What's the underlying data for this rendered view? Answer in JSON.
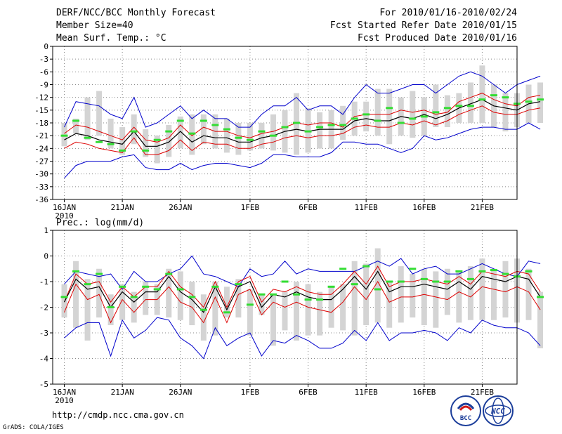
{
  "header": {
    "title": "DERF/NCC/BCC Monthly Forecast",
    "member_size": "Member Size=40",
    "period": "For 2010/01/16-2010/02/24",
    "fcst_started": "Fcst Started Refer Date 2010/01/15",
    "fcst_produced": "Fcst Produced Date 2010/01/16"
  },
  "footer": {
    "url": "http://cmdp.ncc.cma.gov.cn",
    "credit": "GrADS: COLA/IGES",
    "logo_bcc": "BCC",
    "logo_ncc": "NCC"
  },
  "colors": {
    "ensemble_max_min": "#0000cc",
    "spread_band": "#dd0000",
    "mean": "#000000",
    "box": "#d4d4d4",
    "marker": "#33dd33",
    "grid": "#888888"
  },
  "chart_data": [
    {
      "type": "line",
      "title": "Mean Surf. Temp.: °C",
      "x_tick_labels": [
        "16JAN",
        "21JAN",
        "26JAN",
        "1FEB",
        "6FEB",
        "11FEB",
        "16FEB",
        "21FEB"
      ],
      "x_tick_days": [
        0,
        5,
        10,
        16,
        21,
        26,
        31,
        36
      ],
      "x_year_label": "2010",
      "xlim": [
        -1,
        39
      ],
      "ylim": [
        -36,
        0
      ],
      "y_ticks": [
        0,
        -3,
        -6,
        -9,
        -12,
        -15,
        -18,
        -21,
        -24,
        -27,
        -30,
        -33,
        -36
      ],
      "series": [
        {
          "name": "max",
          "values": [
            -19,
            -13,
            -13.5,
            -14,
            -16,
            -17,
            -12,
            -19,
            -18,
            -16,
            -14,
            -17,
            -15,
            -17,
            -17,
            -19,
            -19,
            -16,
            -14,
            -14,
            -12,
            -15,
            -14,
            -14,
            -16,
            -12,
            -9,
            -11,
            -11,
            -10,
            -9,
            -9,
            -11,
            -9,
            -7,
            -6,
            -7,
            -9,
            -11,
            -9,
            -8,
            -7
          ]
        },
        {
          "name": "upper",
          "values": [
            -20.5,
            -18.5,
            -19,
            -20,
            -21,
            -22,
            -19,
            -22,
            -22.5,
            -21.5,
            -18.5,
            -21,
            -19,
            -20,
            -20,
            -21,
            -21.5,
            -20.5,
            -20,
            -19,
            -18,
            -18.5,
            -18,
            -18,
            -19,
            -16.5,
            -16,
            -16,
            -16,
            -15,
            -15.5,
            -15,
            -16,
            -15.5,
            -13,
            -12,
            -11,
            -12.5,
            -13.5,
            -14,
            -12,
            -11.5
          ]
        },
        {
          "name": "mean",
          "values": [
            -22,
            -20.5,
            -21,
            -22,
            -22.5,
            -23,
            -20,
            -23.5,
            -23.5,
            -22.5,
            -20,
            -22.5,
            -21,
            -21.5,
            -21.5,
            -22.5,
            -22.5,
            -21.5,
            -21,
            -20,
            -19.5,
            -20,
            -19.5,
            -19.5,
            -19.5,
            -17.5,
            -17,
            -17.5,
            -17.5,
            -16.5,
            -17,
            -16,
            -17,
            -16,
            -14.5,
            -13.5,
            -12.5,
            -14,
            -14.5,
            -15,
            -13.5,
            -13
          ]
        },
        {
          "name": "lower",
          "values": [
            -24,
            -22.5,
            -23,
            -24,
            -24.5,
            -25,
            -21.5,
            -25.5,
            -25.5,
            -24.5,
            -22,
            -24.5,
            -22.5,
            -23,
            -23,
            -24,
            -24,
            -23,
            -22.5,
            -21.5,
            -21,
            -21.5,
            -21,
            -21,
            -20.5,
            -19,
            -18.5,
            -19,
            -19,
            -18,
            -18.5,
            -17.5,
            -18.5,
            -17.5,
            -16,
            -15,
            -14,
            -15.5,
            -16,
            -16,
            -15,
            -14.5
          ]
        },
        {
          "name": "min",
          "values": [
            -31,
            -28,
            -27,
            -27,
            -27,
            -26,
            -25.5,
            -28.5,
            -29,
            -29,
            -27.5,
            -29,
            -28,
            -27.5,
            -27.5,
            -28,
            -28.5,
            -27.5,
            -25.5,
            -25.5,
            -26,
            -26,
            -26,
            -25,
            -22.5,
            -22.5,
            -23,
            -23,
            -24,
            -25,
            -24,
            -21,
            -22,
            -21.5,
            -20.5,
            -19.5,
            -19,
            -19,
            -19.5,
            -19.5,
            -18,
            -19.5
          ]
        }
      ],
      "boxes": [
        [
          -23.5,
          -18
        ],
        [
          -20.5,
          -17
        ],
        [
          -22,
          -12
        ],
        [
          -21,
          -10.5
        ],
        [
          -24,
          -17
        ],
        [
          -25.5,
          -19
        ],
        [
          -23,
          -16
        ],
        [
          -26,
          -19.5
        ],
        [
          -27.5,
          -21
        ],
        [
          -26,
          -18.5
        ],
        [
          -24,
          -16.5
        ],
        [
          -25.5,
          -16
        ],
        [
          -23,
          -16
        ],
        [
          -24,
          -16
        ],
        [
          -25,
          -17
        ],
        [
          -25.5,
          -18
        ],
        [
          -24.5,
          -18
        ],
        [
          -24,
          -18
        ],
        [
          -24.5,
          -16
        ],
        [
          -25,
          -15
        ],
        [
          -25.5,
          -11
        ],
        [
          -25,
          -14.5
        ],
        [
          -24,
          -15.5
        ],
        [
          -24,
          -15
        ],
        [
          -22,
          -14
        ],
        [
          -21,
          -13
        ],
        [
          -20,
          -13
        ],
        [
          -21,
          -10
        ],
        [
          -23,
          -10
        ],
        [
          -21,
          -12
        ],
        [
          -21.5,
          -10.5
        ],
        [
          -21,
          -12
        ],
        [
          -19,
          -9
        ],
        [
          -19,
          -11.5
        ],
        [
          -18,
          -11
        ],
        [
          -18,
          -8.5
        ],
        [
          -18,
          -4.5
        ],
        [
          -19,
          -9
        ],
        [
          -20,
          -11
        ],
        [
          -19,
          -11
        ],
        [
          -18,
          -9
        ],
        [
          -18,
          -8.5
        ]
      ],
      "markers": [
        -21,
        -17.5,
        -21.5,
        -22.5,
        -23,
        -24.5,
        -20,
        -24.5,
        -22,
        -20,
        -17.5,
        -20.5,
        -17.5,
        -18.5,
        -19.5,
        -21.5,
        -22,
        -20,
        -21,
        -19,
        -18,
        -20,
        -19,
        -18.5,
        -18.5,
        -17,
        -16,
        -17.5,
        -14.5,
        -18,
        -17,
        -16.5,
        -15.5,
        -14.5,
        -14,
        -14,
        -12.5,
        -11.5,
        -12,
        -13.5,
        -13,
        -12.5
      ]
    },
    {
      "type": "line",
      "title": "Prec.: log(mm/d)",
      "x_tick_labels": [
        "16JAN",
        "21JAN",
        "26JAN",
        "1FEB",
        "6FEB",
        "11FEB",
        "16FEB",
        "21FEB"
      ],
      "x_tick_days": [
        0,
        5,
        10,
        16,
        21,
        26,
        31,
        36
      ],
      "x_year_label": "2010",
      "xlim": [
        -1,
        39
      ],
      "ylim": [
        -5,
        1
      ],
      "y_ticks": [
        1,
        0,
        -1,
        -2,
        -3,
        -4,
        -5
      ],
      "series": [
        {
          "name": "max",
          "values": [
            -1.1,
            -0.6,
            -0.7,
            -0.8,
            -0.7,
            -1.3,
            -0.6,
            -1.0,
            -1.0,
            -0.7,
            -0.5,
            0.0,
            -0.7,
            -0.8,
            -1.0,
            -1.2,
            -0.5,
            -0.8,
            -0.7,
            -0.2,
            -0.7,
            -0.5,
            -0.6,
            -0.6,
            -0.6,
            -0.6,
            -0.4,
            -0.2,
            -0.4,
            -0.1,
            -0.7,
            -0.5,
            -0.4,
            -0.7,
            -0.7,
            -0.5,
            -0.3,
            -0.5,
            -0.7,
            -0.8,
            -0.2,
            -0.3
          ]
        },
        {
          "name": "upper",
          "values": [
            -1.8,
            -0.7,
            -1.1,
            -1.0,
            -1.8,
            -1.2,
            -1.6,
            -1.2,
            -1.2,
            -0.6,
            -1.2,
            -1.5,
            -2.0,
            -1.0,
            -2.0,
            -1.0,
            -0.8,
            -1.8,
            -1.3,
            -1.4,
            -1.2,
            -1.4,
            -1.5,
            -1.5,
            -1.1,
            -0.6,
            -1.1,
            -0.4,
            -1.2,
            -1.0,
            -1.0,
            -0.9,
            -1.0,
            -1.1,
            -0.8,
            -1.1,
            -0.6,
            -0.7,
            -0.8,
            -0.6,
            -0.7,
            -1.4
          ]
        },
        {
          "name": "mean",
          "values": [
            -1.8,
            -0.9,
            -1.3,
            -1.2,
            -2.0,
            -1.4,
            -1.8,
            -1.4,
            -1.4,
            -0.8,
            -1.4,
            -1.7,
            -2.2,
            -1.2,
            -2.1,
            -1.2,
            -1.0,
            -2.0,
            -1.5,
            -1.6,
            -1.4,
            -1.6,
            -1.7,
            -1.7,
            -1.3,
            -0.8,
            -1.3,
            -0.6,
            -1.4,
            -1.2,
            -1.2,
            -1.1,
            -1.2,
            -1.3,
            -1.0,
            -1.3,
            -0.8,
            -0.9,
            -1.0,
            -0.8,
            -0.9,
            -1.6
          ]
        },
        {
          "name": "lower",
          "values": [
            -2.2,
            -1.1,
            -1.7,
            -1.5,
            -2.6,
            -1.7,
            -2.2,
            -1.7,
            -1.7,
            -1.2,
            -1.8,
            -2.0,
            -2.6,
            -1.6,
            -2.6,
            -1.5,
            -1.3,
            -2.3,
            -1.8,
            -2.0,
            -1.8,
            -2.0,
            -2.1,
            -2.2,
            -1.8,
            -1.2,
            -1.7,
            -1.0,
            -1.8,
            -1.6,
            -1.6,
            -1.5,
            -1.6,
            -1.7,
            -1.4,
            -1.6,
            -1.2,
            -1.3,
            -1.4,
            -1.2,
            -1.4,
            -2.1
          ]
        },
        {
          "name": "min",
          "values": [
            -3.2,
            -2.8,
            -2.6,
            -2.6,
            -3.9,
            -2.5,
            -3.2,
            -2.9,
            -2.4,
            -2.5,
            -3.2,
            -3.5,
            -4.0,
            -2.8,
            -3.5,
            -3.2,
            -3.0,
            -3.9,
            -3.3,
            -3.4,
            -3.1,
            -3.3,
            -3.6,
            -3.6,
            -3.4,
            -2.9,
            -3.3,
            -2.6,
            -3.3,
            -3.0,
            -3.0,
            -2.9,
            -3.0,
            -3.3,
            -2.8,
            -3.0,
            -2.5,
            -2.7,
            -2.8,
            -2.8,
            -3.0,
            -3.5
          ]
        },
        {
          "name": "upper-bound-thin",
          "values": []
        }
      ],
      "boxes": [
        [
          -2.4,
          -1.1
        ],
        [
          -2.8,
          -0.2
        ],
        [
          -3.3,
          -0.9
        ],
        [
          -2.4,
          -0.5
        ],
        [
          -2.7,
          -1.5
        ],
        [
          -2.5,
          -1.1
        ],
        [
          -2.6,
          -1.4
        ],
        [
          -2.3,
          -1.0
        ],
        [
          -2.3,
          -1.1
        ],
        [
          -2.4,
          -0.5
        ],
        [
          -2.5,
          -0.6
        ],
        [
          -2.7,
          -1.0
        ],
        [
          -3.3,
          -1.5
        ],
        [
          -3.1,
          -1.0
        ],
        [
          -2.4,
          -1.2
        ],
        [
          -2.4,
          -0.9
        ],
        [
          -3.1,
          -1.3
        ],
        [
          -2.3,
          -1.5
        ],
        [
          -3.5,
          -1.5
        ],
        [
          -2.9,
          -1.4
        ],
        [
          -3.3,
          -1.0
        ],
        [
          -3.1,
          -1.1
        ],
        [
          -3.1,
          -1.4
        ],
        [
          -2.8,
          -1.2
        ],
        [
          -2.9,
          -1.1
        ],
        [
          -3.1,
          -0.2
        ],
        [
          -2.7,
          -0.3
        ],
        [
          -2.6,
          0.3
        ],
        [
          -2.8,
          -1.0
        ],
        [
          -2.6,
          -0.4
        ],
        [
          -2.4,
          -0.7
        ],
        [
          -2.7,
          -0.5
        ],
        [
          -2.8,
          -0.6
        ],
        [
          -2.3,
          -0.5
        ],
        [
          -2.6,
          -0.6
        ],
        [
          -2.5,
          -0.4
        ],
        [
          -2.5,
          -0.1
        ],
        [
          -2.5,
          -0.5
        ],
        [
          -2.4,
          -0.2
        ],
        [
          -2.6,
          -0.1
        ],
        [
          -2.5,
          -0.5
        ],
        [
          -3.6,
          -1.4
        ]
      ],
      "markers": [
        -1.6,
        -0.6,
        -1.1,
        -0.7,
        -2.0,
        -1.2,
        -1.6,
        -1.2,
        -1.3,
        -0.7,
        -1.3,
        -1.6,
        -2.1,
        -1.2,
        -2.2,
        -1.1,
        -1.9,
        -1.5,
        -1.5,
        -1.0,
        -1.5,
        -1.7,
        -1.7,
        -1.2,
        -0.5,
        -1.1,
        -0.4,
        -1.3,
        -1.0,
        -1.0,
        -0.5,
        -0.9,
        -1.0,
        -1.0,
        -0.6,
        -0.9,
        -0.6,
        -0.55,
        -0.7,
        -0.8,
        -0.6,
        -1.6
      ]
    }
  ]
}
